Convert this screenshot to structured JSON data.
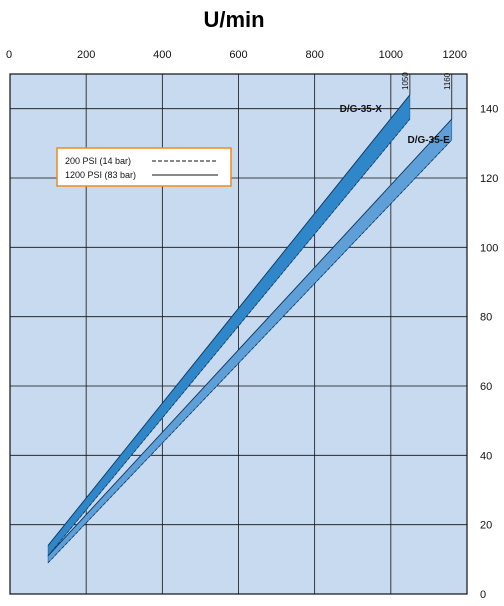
{
  "chart_data": {
    "type": "area",
    "title": "U/min",
    "xlabel": "",
    "ylabel": "",
    "xlim": [
      0,
      1200
    ],
    "ylim": [
      0,
      150
    ],
    "x_ticks": [
      0,
      200,
      400,
      600,
      800,
      1000,
      1200
    ],
    "y_ticks": [
      0,
      20,
      40,
      60,
      80,
      100,
      120,
      140
    ],
    "x_tick_labels": [
      "0",
      "200",
      "400",
      "600",
      "800",
      "1000",
      "1200"
    ],
    "y_tick_labels": [
      "0",
      "20",
      "40",
      "60",
      "80",
      "100",
      "120",
      "140"
    ],
    "grid": true,
    "background_color": "#c8daf0",
    "legend": {
      "placement": "top-left",
      "border_color": "#ef8a1a",
      "entries": [
        {
          "label": "200 PSI (14 bar)",
          "line_style": "dashed"
        },
        {
          "label": "1200 PSI (83 bar)",
          "line_style": "solid"
        }
      ]
    },
    "series": [
      {
        "name": "D/G-35-X",
        "color": "#2f86c8",
        "max_label": "1050",
        "x": [
          100,
          1050
        ],
        "upper": [
          14,
          144
        ],
        "lower": [
          11,
          137
        ]
      },
      {
        "name": "D/G-35-E",
        "color": "#5e9fd8",
        "max_label": "1160",
        "x": [
          100,
          1160
        ],
        "upper": [
          11,
          137
        ],
        "lower": [
          9,
          131
        ]
      }
    ]
  }
}
